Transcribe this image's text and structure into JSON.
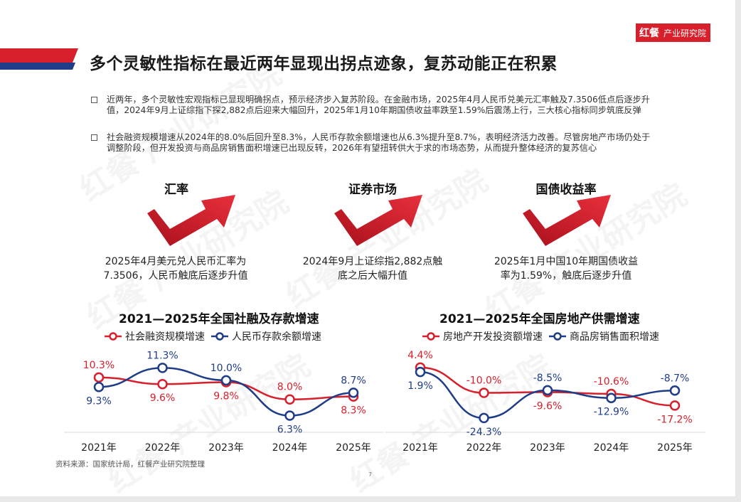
{
  "logo": {
    "mark": "红餐",
    "name": "产业研究院"
  },
  "watermark_text": "红餐 产业研究院",
  "colors": {
    "red": "#d8202c",
    "navy": "#1f3c88"
  },
  "title": "多个灵敏性指标在最近两年显现出拐点迹象，复苏动能正在积累",
  "bullets": [
    "近两年，多个灵敏性宏观指标已显现明确拐点，预示经济步入复苏阶段。在金融市场，2025年4月人民币兑美元汇率触及7.3506低点后逐步升值，2024年9月上证综指下探2,882点后迎来大幅回升，2025年1月10年期国债收益率跌至1.59%后震荡上行，三大核心指标同步筑底反弹",
    "社会融资规模增速从2024年的8.0%后回升至8.3%，人民币存款余额增速也从6.3%提升至8.7%，表明经济活力改善。尽管房地产市场仍处于调整阶段，但开发投资与商品房销售面积增速已出现反转，2026年有望扭转供大于求的市场态势，从而提升整体经济的复苏信心"
  ],
  "indicators": [
    {
      "heading": "汇率",
      "desc1": "2025年4月美元兑人民币汇率为",
      "desc2": "7.3506，人民币触底后逐步升值"
    },
    {
      "heading": "证券市场",
      "desc1": "2024年9月上证综指2,882点触",
      "desc2": "底之后大幅升值"
    },
    {
      "heading": "国债收益率",
      "desc1": "2025年1月中国10年期国债收益",
      "desc2": "率为1.59%，触底后逐步升值"
    }
  ],
  "chart_data": [
    {
      "type": "line",
      "title": "2021—2025年全国社融及存款增速",
      "categories": [
        "2021年",
        "2022年",
        "2023年",
        "2024年",
        "2025年"
      ],
      "series": [
        {
          "name": "社会融资规模增速",
          "color": "#d8202c",
          "values": [
            10.3,
            9.6,
            9.8,
            8.0,
            8.3
          ],
          "labels": [
            "10.3%",
            "9.6%",
            "9.8%",
            "8.0%",
            "8.3%"
          ]
        },
        {
          "name": "人民币存款余额增速",
          "color": "#1f3c88",
          "values": [
            9.3,
            11.3,
            10.0,
            6.3,
            8.7
          ],
          "labels": [
            "9.3%",
            "11.3%",
            "10.0%",
            "6.3%",
            "8.7%"
          ]
        }
      ],
      "ylim": [
        5,
        12
      ]
    },
    {
      "type": "line",
      "title": "2021—2025年全国房地产供需增速",
      "categories": [
        "2021年",
        "2022年",
        "2023年",
        "2024年",
        "2025年"
      ],
      "series": [
        {
          "name": "房地产开发投资额增速",
          "color": "#d8202c",
          "values": [
            4.4,
            -10.0,
            -9.6,
            -10.6,
            -17.2
          ],
          "labels": [
            "4.4%",
            "-10.0%",
            "-9.6%",
            "-10.6%",
            "-17.2%"
          ]
        },
        {
          "name": "商品房销售面积增速",
          "color": "#1f3c88",
          "values": [
            1.9,
            -24.3,
            -8.5,
            -12.9,
            -8.7
          ],
          "labels": [
            "1.9%",
            "-24.3%",
            "-8.5%",
            "-12.9%",
            "-8.7%"
          ]
        }
      ],
      "ylim": [
        -30,
        8
      ]
    }
  ],
  "source": "资料来源：国家统计局，红餐产业研究院整理",
  "page_number": "7"
}
